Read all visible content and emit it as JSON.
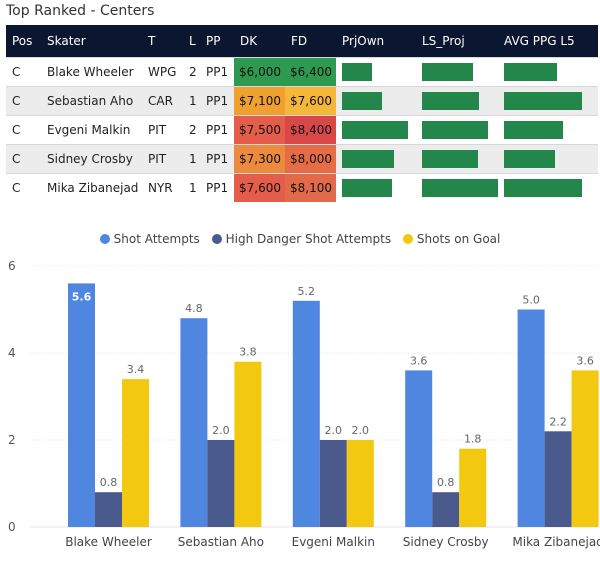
{
  "title": "Top Ranked - Centers",
  "table": {
    "headers": [
      "Pos",
      "Skater",
      "T",
      "L",
      "PP",
      "DK",
      "FD",
      "PrjOwn",
      "LS_Proj",
      "AVG PPG L5"
    ],
    "rows": [
      {
        "pos": "C",
        "skater": "Blake Wheeler",
        "team": "WPG",
        "line": "2",
        "pp": "PP1",
        "dk": "$6,000",
        "fd": "$6,400",
        "dk_color": "#2e9a50",
        "fd_color": "#2e9a50",
        "prjown": 0.45,
        "ls_proj": 0.65,
        "avg_ppg": 0.68
      },
      {
        "pos": "C",
        "skater": "Sebastian Aho",
        "team": "CAR",
        "line": "1",
        "pp": "PP1",
        "dk": "$7,100",
        "fd": "$7,600",
        "dk_color": "#f0a030",
        "fd_color": "#f5b73a",
        "prjown": 0.6,
        "ls_proj": 0.73,
        "avg_ppg": 1.0
      },
      {
        "pos": "C",
        "skater": "Evgeni Malkin",
        "team": "PIT",
        "line": "2",
        "pp": "PP1",
        "dk": "$7,500",
        "fd": "$8,400",
        "dk_color": "#e35d4a",
        "fd_color": "#d94848",
        "prjown": 1.0,
        "ls_proj": 0.85,
        "avg_ppg": 0.76
      },
      {
        "pos": "C",
        "skater": "Sidney Crosby",
        "team": "PIT",
        "line": "1",
        "pp": "PP1",
        "dk": "$7,300",
        "fd": "$8,000",
        "dk_color": "#ec8a3e",
        "fd_color": "#e66c46",
        "prjown": 0.79,
        "ls_proj": 0.72,
        "avg_ppg": 0.65
      },
      {
        "pos": "C",
        "skater": "Mika Zibanejad",
        "team": "NYR",
        "line": "1",
        "pp": "PP1",
        "dk": "$7,600",
        "fd": "$8,100",
        "dk_color": "#e35d4a",
        "fd_color": "#e36a48",
        "prjown": 0.76,
        "ls_proj": 0.97,
        "avg_ppg": 1.0
      }
    ]
  },
  "colors": {
    "header_bg": "#0b1731",
    "bar_green": "#23864a"
  },
  "chart_data": {
    "type": "bar",
    "title": "",
    "categories": [
      "Blake Wheeler",
      "Sebastian Aho",
      "Evgeni Malkin",
      "Sidney Crosby",
      "Mika Zibanejad"
    ],
    "series": [
      {
        "name": "Shot Attempts",
        "color": "#4f86e0",
        "values": [
          5.6,
          4.8,
          5.2,
          3.6,
          5.0
        ],
        "labels": [
          "5.6",
          "4.8",
          "5.2",
          "3.6",
          "5.0"
        ]
      },
      {
        "name": "High Danger Shot Attempts",
        "color": "#4a5a8c",
        "values": [
          0.8,
          2.0,
          2.0,
          0.8,
          2.2
        ],
        "labels": [
          "0.8",
          "2.0",
          "2.0",
          "0.8",
          "2.2"
        ]
      },
      {
        "name": "Shots on Goal",
        "color": "#f2c811",
        "values": [
          3.4,
          3.8,
          2.0,
          1.8,
          3.6
        ],
        "labels": [
          "3.4",
          "3.8",
          "2.0",
          "1.8",
          "3.6"
        ]
      }
    ],
    "yticks": [
      "0",
      "2",
      "4",
      "6"
    ],
    "ylim": [
      0,
      6
    ],
    "legend_position": "top-center"
  }
}
